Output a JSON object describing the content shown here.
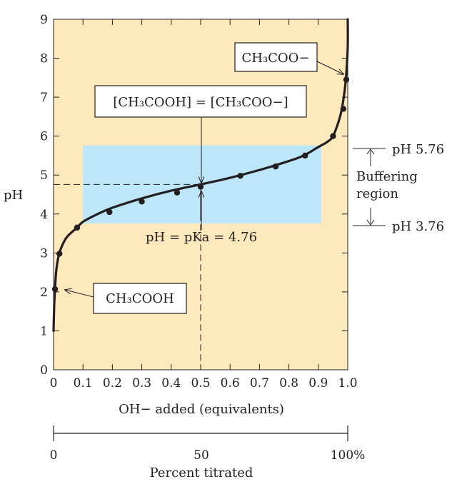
{
  "chart_data": {
    "type": "line",
    "title": "",
    "xlabel": "OH− added (equivalents)",
    "ylabel": "pH",
    "xlim": [
      0,
      1.0
    ],
    "ylim": [
      0,
      9
    ],
    "x_ticks": [
      "0",
      "0.1",
      "0.2",
      "0.3",
      "0.4",
      "0.5",
      "0.6",
      "0.7",
      "0.8",
      "0.9",
      "1.0"
    ],
    "y_ticks": [
      "0",
      "1",
      "2",
      "3",
      "4",
      "5",
      "6",
      "7",
      "8",
      "9"
    ],
    "secondary_axis": {
      "label": "Percent titrated",
      "ticks": [
        "0",
        "50",
        "100%"
      ]
    },
    "pKa": 4.76,
    "curve": {
      "x": [
        0.0,
        0.002,
        0.005,
        0.01,
        0.02,
        0.04,
        0.06,
        0.08,
        0.1,
        0.15,
        0.2,
        0.3,
        0.4,
        0.5,
        0.6,
        0.7,
        0.8,
        0.85,
        0.9,
        0.93,
        0.95,
        0.97,
        0.98,
        0.99,
        0.995,
        1.0,
        1.0
      ],
      "y": [
        1.0,
        1.6,
        2.1,
        2.6,
        3.0,
        3.35,
        3.52,
        3.65,
        3.8,
        4.0,
        4.16,
        4.4,
        4.6,
        4.76,
        4.93,
        5.13,
        5.36,
        5.5,
        5.72,
        5.85,
        6.0,
        6.4,
        6.7,
        7.2,
        7.6,
        8.3,
        9.0
      ]
    },
    "points": {
      "x": [
        0.005,
        0.02,
        0.08,
        0.19,
        0.3,
        0.42,
        0.5,
        0.635,
        0.755,
        0.855,
        0.95,
        0.985,
        0.995
      ],
      "y": [
        2.07,
        2.98,
        3.65,
        4.05,
        4.32,
        4.55,
        4.7,
        4.98,
        5.22,
        5.5,
        6.0,
        6.7,
        7.45
      ]
    },
    "buffer_region": {
      "x": [
        0.1,
        0.91
      ],
      "y": [
        3.76,
        5.76
      ]
    },
    "grid": false
  },
  "annotations": {
    "equal_conc_label": "[CH₃COOH] = [CH₃COO−]",
    "pka_label": "pH = pKa = 4.76",
    "acetate_label": "CH₃COO−",
    "acetic_acid_label": "CH₃COOH",
    "ph_upper_label": "pH 5.76",
    "ph_lower_label": "pH 3.76",
    "buffering_line1": "Buffering",
    "buffering_line2": "region"
  },
  "colors": {
    "plot_background": "#fde9bb",
    "buffer_region": "#bde6f8",
    "curve": "#231f20"
  }
}
